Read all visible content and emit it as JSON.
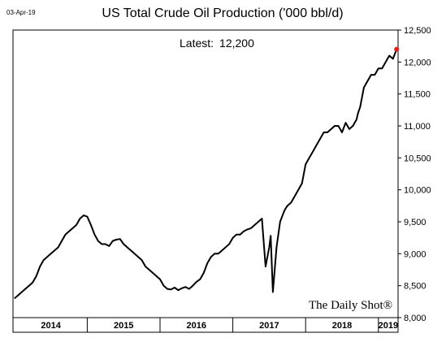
{
  "date_stamp": "03-Apr-19",
  "latest_label": "Latest:",
  "latest_value": "12,200",
  "brand": "The Daily Shot®",
  "chart_data": {
    "type": "line",
    "title": "US Total Crude Oil Production ('000 bbl/d)",
    "xlabel": "",
    "ylabel": "",
    "ylim": [
      8000,
      12500
    ],
    "xlim": [
      2013.98,
      2019.27
    ],
    "y_ticks": [
      "8,000",
      "8,500",
      "9,000",
      "9,500",
      "10,000",
      "10,500",
      "11,000",
      "11,500",
      "12,000",
      "12,500"
    ],
    "x_ticks": [
      "2014",
      "2015",
      "2016",
      "2017",
      "2018",
      "2019"
    ],
    "grid": false,
    "highlight_last_point": true,
    "series": [
      {
        "color": "#000000",
        "x": [
          2014.0,
          2014.05,
          2014.1,
          2014.15,
          2014.2,
          2014.25,
          2014.3,
          2014.35,
          2014.4,
          2014.45,
          2014.5,
          2014.55,
          2014.6,
          2014.65,
          2014.7,
          2014.75,
          2014.8,
          2014.85,
          2014.9,
          2014.95,
          2015.0,
          2015.05,
          2015.1,
          2015.15,
          2015.2,
          2015.25,
          2015.3,
          2015.35,
          2015.4,
          2015.45,
          2015.5,
          2015.55,
          2015.6,
          2015.65,
          2015.7,
          2015.75,
          2015.8,
          2015.85,
          2015.9,
          2015.95,
          2016.0,
          2016.05,
          2016.1,
          2016.15,
          2016.2,
          2016.25,
          2016.3,
          2016.35,
          2016.4,
          2016.45,
          2016.5,
          2016.55,
          2016.6,
          2016.65,
          2016.7,
          2016.75,
          2016.8,
          2016.85,
          2016.9,
          2016.95,
          2017.0,
          2017.05,
          2017.1,
          2017.15,
          2017.2,
          2017.25,
          2017.3,
          2017.35,
          2017.4,
          2017.45,
          2017.5,
          2017.52,
          2017.55,
          2017.6,
          2017.65,
          2017.7,
          2017.72,
          2017.75,
          2017.8,
          2017.85,
          2017.9,
          2017.95,
          2018.0,
          2018.05,
          2018.1,
          2018.15,
          2018.2,
          2018.25,
          2018.3,
          2018.35,
          2018.4,
          2018.45,
          2018.5,
          2018.55,
          2018.6,
          2018.65,
          2018.7,
          2018.72,
          2018.75,
          2018.8,
          2018.85,
          2018.9,
          2018.95,
          2019.0,
          2019.05,
          2019.1,
          2019.15,
          2019.2,
          2019.25
        ],
        "y": [
          8300,
          8350,
          8400,
          8450,
          8500,
          8550,
          8650,
          8800,
          8900,
          8950,
          9000,
          9050,
          9100,
          9200,
          9300,
          9350,
          9400,
          9450,
          9550,
          9600,
          9580,
          9450,
          9300,
          9200,
          9150,
          9150,
          9120,
          9200,
          9220,
          9230,
          9150,
          9100,
          9050,
          9000,
          8950,
          8900,
          8800,
          8750,
          8700,
          8650,
          8600,
          8500,
          8450,
          8440,
          8470,
          8430,
          8460,
          8480,
          8450,
          8500,
          8560,
          8600,
          8700,
          8850,
          8950,
          9000,
          9000,
          9050,
          9100,
          9150,
          9250,
          9300,
          9300,
          9350,
          9380,
          9400,
          9450,
          9500,
          9550,
          8800,
          9100,
          9280,
          8400,
          9100,
          9500,
          9650,
          9700,
          9750,
          9800,
          9900,
          10000,
          10100,
          10400,
          10500,
          10600,
          10700,
          10800,
          10900,
          10900,
          10950,
          11000,
          11000,
          10900,
          11050,
          10950,
          11000,
          11100,
          11200,
          11300,
          11600,
          11700,
          11800,
          11800,
          11900,
          11900,
          12000,
          12100,
          12050,
          12200
        ]
      }
    ]
  }
}
